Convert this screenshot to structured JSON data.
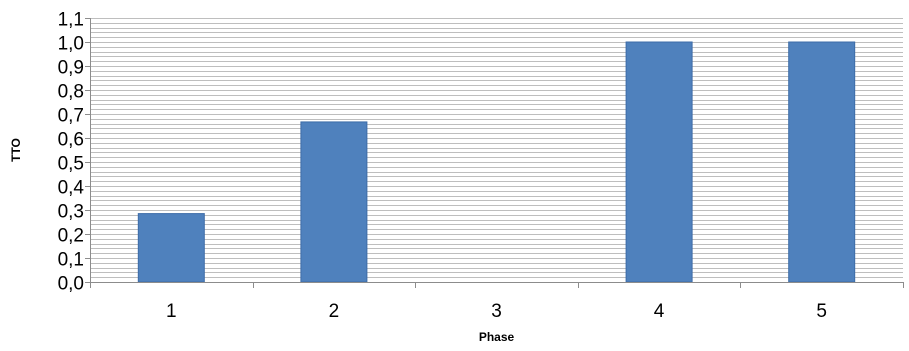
{
  "chart_data": {
    "type": "bar",
    "categories": [
      "1",
      "2",
      "3",
      "4",
      "5"
    ],
    "values": [
      0.285,
      0.667,
      0.0,
      1.0,
      1.0
    ],
    "xlabel": "Phase",
    "ylabel": "TTO",
    "ylim": [
      0,
      1.1
    ],
    "ytick_labels": [
      "0,0",
      "0,1",
      "0,2",
      "0,3",
      "0,4",
      "0,5",
      "0,6",
      "0,7",
      "0,8",
      "0,9",
      "1,0",
      "1,1"
    ],
    "minor_grid_step": 0.02,
    "grid": true,
    "legend": "none",
    "colors": {
      "bar": "#4F81BD",
      "bar_edge": "#3C6CA8",
      "grid": "#BEBEBE",
      "axis": "#8C8C8C"
    }
  }
}
